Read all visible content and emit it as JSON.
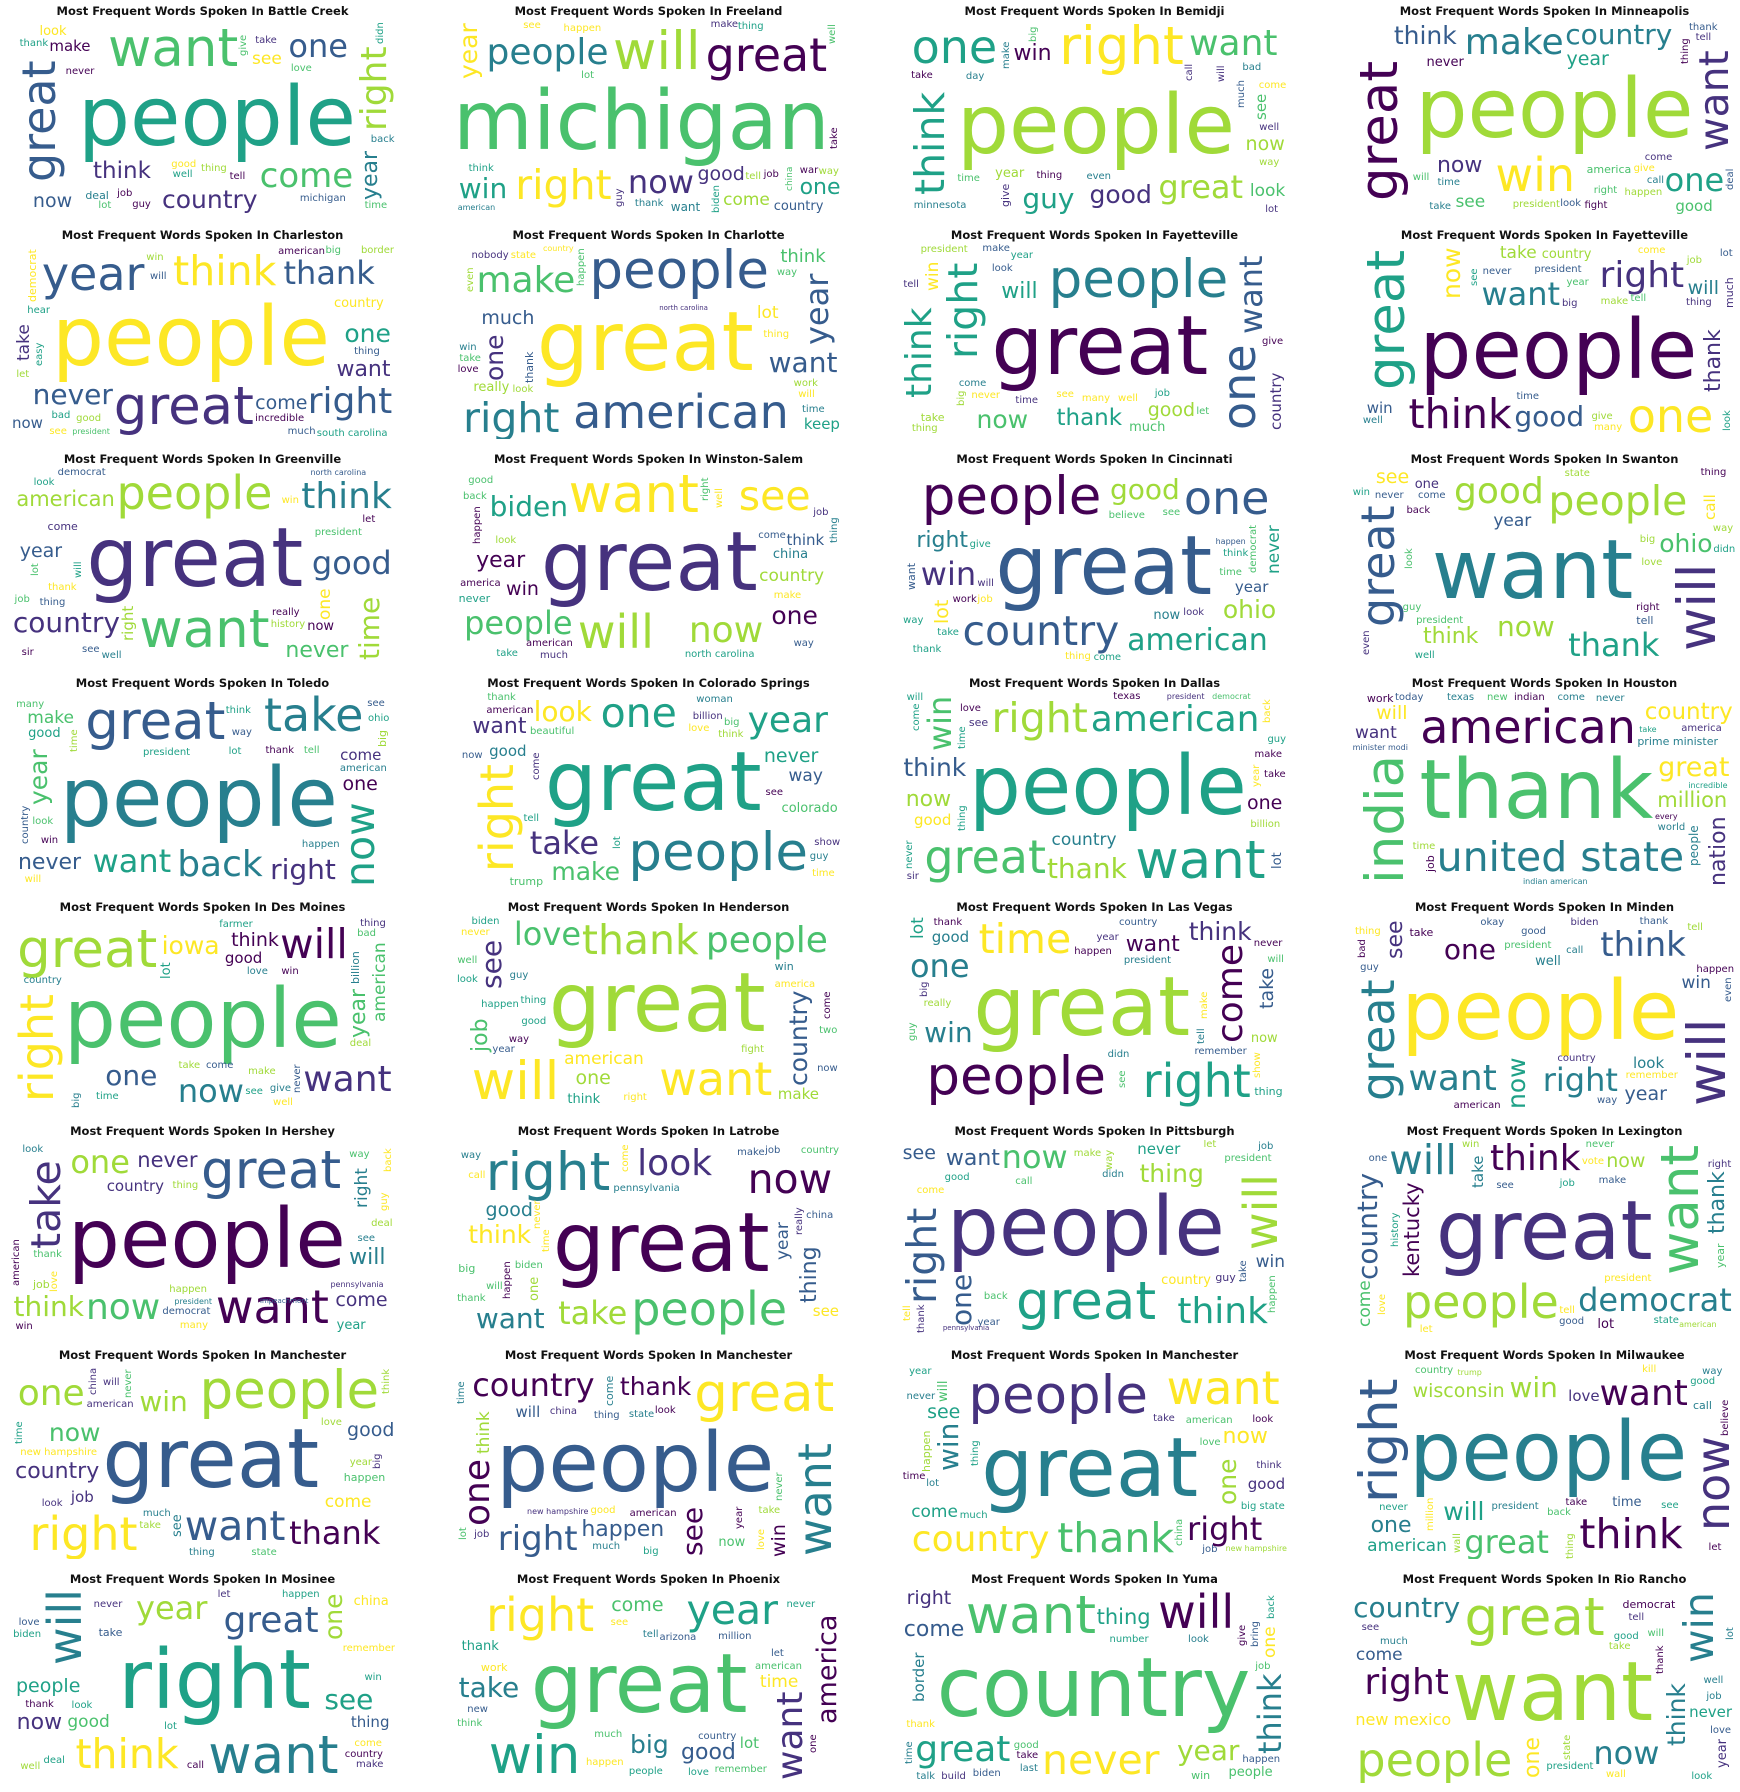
{
  "colors": [
    "#440154",
    "#46327e",
    "#365c8d",
    "#277f8e",
    "#1fa187",
    "#4ac16d",
    "#a0da39",
    "#fde725"
  ],
  "panels": [
    {
      "title": "Most Frequent Words Spoken In Battle Creek",
      "words": [
        "people",
        "want",
        "great",
        "come",
        "right",
        "one",
        "think",
        "country",
        "year",
        "now",
        "see",
        "make",
        "look",
        "deal",
        "job",
        "didn",
        "time",
        "good",
        "give",
        "lot",
        "thank",
        "guy",
        "never",
        "love",
        "thing",
        "michigan",
        "back",
        "take",
        "tell",
        "well"
      ]
    },
    {
      "title": "Most Frequent Words Spoken In Freeland",
      "words": [
        "michigan",
        "will",
        "great",
        "right",
        "people",
        "now",
        "win",
        "year",
        "one",
        "good",
        "come",
        "want",
        "country",
        "china",
        "well",
        "guy",
        "see",
        "tell",
        "think",
        "take",
        "make",
        "job",
        "lot",
        "happen",
        "biden",
        "way",
        "war",
        "american",
        "thank",
        "thing"
      ]
    },
    {
      "title": "Most Frequent Words Spoken In Bemidji",
      "words": [
        "people",
        "right",
        "one",
        "think",
        "want",
        "great",
        "guy",
        "good",
        "win",
        "now",
        "look",
        "see",
        "year",
        "give",
        "come",
        "bad",
        "will",
        "time",
        "much",
        "big",
        "minnesota",
        "thing",
        "day",
        "make",
        "lot",
        "even",
        "call",
        "way",
        "take",
        "well"
      ]
    },
    {
      "title": "Most Frequent Words Spoken In Minneapolis",
      "words": [
        "people",
        "great",
        "win",
        "want",
        "make",
        "one",
        "country",
        "think",
        "now",
        "year",
        "see",
        "good",
        "never",
        "america",
        "thing",
        "happen",
        "tell",
        "come",
        "look",
        "fight",
        "give",
        "time",
        "call",
        "will",
        "president",
        "take",
        "right",
        "deal",
        "thank"
      ]
    },
    {
      "title": "Most Frequent Words Spoken In Charleston",
      "words": [
        "people",
        "great",
        "year",
        "think",
        "right",
        "thank",
        "never",
        "one",
        "want",
        "come",
        "take",
        "now",
        "country",
        "democrat",
        "thing",
        "see",
        "good",
        "hear",
        "border",
        "much",
        "bad",
        "big",
        "will",
        "easy",
        "south carolina",
        "let",
        "american",
        "president",
        "incredible",
        "win"
      ]
    },
    {
      "title": "Most Frequent Words Spoken In Charlotte",
      "words": [
        "great",
        "people",
        "american",
        "right",
        "make",
        "year",
        "want",
        "one",
        "think",
        "much",
        "lot",
        "keep",
        "really",
        "thank",
        "time",
        "will",
        "state",
        "thing",
        "north carolina",
        "even",
        "look",
        "nobody",
        "take",
        "happen",
        "country",
        "work",
        "win",
        "love",
        "way"
      ]
    },
    {
      "title": "Most Frequent Words Spoken In Fayetteville",
      "words": [
        "great",
        "people",
        "one",
        "right",
        "think",
        "want",
        "thank",
        "now",
        "will",
        "good",
        "win",
        "country",
        "much",
        "take",
        "year",
        "big",
        "see",
        "make",
        "time",
        "never",
        "tell",
        "many",
        "well",
        "give",
        "come",
        "president",
        "job",
        "look",
        "let",
        "thing"
      ]
    },
    {
      "title": "Most Frequent Words Spoken In Fayetteville",
      "words": [
        "people",
        "great",
        "one",
        "think",
        "right",
        "want",
        "good",
        "now",
        "thank",
        "will",
        "take",
        "win",
        "country",
        "much",
        "year",
        "well",
        "big",
        "give",
        "time",
        "come",
        "make",
        "job",
        "see",
        "many",
        "never",
        "lot",
        "thing",
        "president",
        "look",
        "tell"
      ]
    },
    {
      "title": "Most Frequent Words Spoken In Greenville",
      "words": [
        "great",
        "want",
        "people",
        "country",
        "think",
        "good",
        "time",
        "american",
        "never",
        "year",
        "one",
        "right",
        "now",
        "come",
        "job",
        "thank",
        "see",
        "lot",
        "look",
        "sir",
        "really",
        "president",
        "let",
        "well",
        "democrat",
        "history",
        "win",
        "will",
        "thing",
        "north carolina"
      ]
    },
    {
      "title": "Most Frequent Words Spoken In Winston-Salem",
      "words": [
        "great",
        "want",
        "will",
        "see",
        "now",
        "people",
        "biden",
        "one",
        "year",
        "win",
        "country",
        "think",
        "china",
        "never",
        "come",
        "take",
        "make",
        "back",
        "american",
        "way",
        "job",
        "good",
        "look",
        "america",
        "happen",
        "well",
        "north carolina",
        "much",
        "right",
        "thing"
      ]
    },
    {
      "title": "Most Frequent Words Spoken In Cincinnati",
      "words": [
        "great",
        "people",
        "one",
        "country",
        "american",
        "win",
        "good",
        "ohio",
        "right",
        "lot",
        "never",
        "year",
        "now",
        "want",
        "thank",
        "see",
        "job",
        "time",
        "way",
        "believe",
        "look",
        "democrat",
        "take",
        "will",
        "happen",
        "give",
        "think",
        "come",
        "thing",
        "work"
      ]
    },
    {
      "title": "Most Frequent Words Spoken In Swanton",
      "words": [
        "want",
        "will",
        "great",
        "people",
        "good",
        "thank",
        "now",
        "ohio",
        "think",
        "see",
        "year",
        "call",
        "one",
        "tell",
        "never",
        "thing",
        "come",
        "even",
        "win",
        "didn",
        "president",
        "back",
        "big",
        "guy",
        "way",
        "right",
        "look",
        "well",
        "state",
        "love"
      ]
    },
    {
      "title": "Most Frequent Words Spoken In Toledo",
      "words": [
        "people",
        "great",
        "take",
        "now",
        "back",
        "want",
        "right",
        "year",
        "never",
        "one",
        "make",
        "come",
        "good",
        "big",
        "think",
        "lot",
        "time",
        "country",
        "thank",
        "win",
        "tell",
        "see",
        "happen",
        "look",
        "ohio",
        "many",
        "way",
        "will",
        "president",
        "american"
      ]
    },
    {
      "title": "Most Frequent Words Spoken In Colorado Springs",
      "words": [
        "great",
        "people",
        "right",
        "one",
        "year",
        "take",
        "look",
        "make",
        "want",
        "never",
        "way",
        "good",
        "colorado",
        "trump",
        "love",
        "guy",
        "woman",
        "come",
        "tell",
        "american",
        "see",
        "billion",
        "beautiful",
        "show",
        "now",
        "big",
        "time",
        "think",
        "thank",
        "lot"
      ]
    },
    {
      "title": "Most Frequent Words Spoken In Dallas",
      "words": [
        "people",
        "want",
        "great",
        "right",
        "american",
        "win",
        "thank",
        "think",
        "now",
        "one",
        "country",
        "good",
        "lot",
        "see",
        "billion",
        "will",
        "democrat",
        "love",
        "texas",
        "make",
        "year",
        "never",
        "take",
        "president",
        "come",
        "guy",
        "time",
        "thing",
        "back",
        "sir"
      ]
    },
    {
      "title": "Most Frequent Words Spoken In Houston",
      "words": [
        "thank",
        "india",
        "american",
        "united state",
        "prime minister",
        "great",
        "country",
        "million",
        "nation",
        "will",
        "want",
        "people",
        "work",
        "job",
        "indian",
        "america",
        "world",
        "minister modi",
        "today",
        "never",
        "every",
        "time",
        "come",
        "new",
        "incredible",
        "texas",
        "take",
        "indian american"
      ]
    },
    {
      "title": "Most Frequent Words Spoken In Des Moines",
      "words": [
        "people",
        "great",
        "right",
        "will",
        "want",
        "now",
        "one",
        "iowa",
        "year",
        "think",
        "american",
        "good",
        "lot",
        "billion",
        "farmer",
        "come",
        "make",
        "take",
        "give",
        "deal",
        "love",
        "big",
        "well",
        "time",
        "see",
        "never",
        "country",
        "win",
        "bad",
        "thing"
      ]
    },
    {
      "title": "Most Frequent Words Spoken In Henderson",
      "words": [
        "great",
        "will",
        "want",
        "thank",
        "people",
        "love",
        "see",
        "country",
        "job",
        "one",
        "american",
        "make",
        "think",
        "win",
        "guy",
        "fight",
        "right",
        "happen",
        "year",
        "good",
        "two",
        "way",
        "never",
        "look",
        "now",
        "america",
        "well",
        "biden",
        "come",
        "thing"
      ]
    },
    {
      "title": "Most Frequent Words Spoken In Las Vegas",
      "words": [
        "great",
        "people",
        "right",
        "time",
        "come",
        "one",
        "win",
        "think",
        "want",
        "take",
        "lot",
        "good",
        "now",
        "thing",
        "year",
        "thank",
        "see",
        "make",
        "big",
        "guy",
        "country",
        "really",
        "didn",
        "show",
        "will",
        "happen",
        "never",
        "president",
        "tell",
        "remember"
      ]
    },
    {
      "title": "Most Frequent Words Spoken In Minden",
      "words": [
        "people",
        "will",
        "great",
        "think",
        "want",
        "right",
        "one",
        "now",
        "see",
        "year",
        "win",
        "look",
        "well",
        "take",
        "good",
        "thank",
        "call",
        "biden",
        "bad",
        "country",
        "guy",
        "way",
        "happen",
        "thing",
        "tell",
        "president",
        "okay",
        "american",
        "remember",
        "even"
      ]
    },
    {
      "title": "Most Frequent Words Spoken In Hershey",
      "words": [
        "people",
        "great",
        "want",
        "take",
        "now",
        "one",
        "think",
        "never",
        "will",
        "come",
        "right",
        "country",
        "year",
        "job",
        "see",
        "win",
        "way",
        "democrat",
        "look",
        "american",
        "happen",
        "love",
        "thing",
        "deal",
        "many",
        "guy",
        "back",
        "thank",
        "president",
        "pennsylvania",
        "impeachment"
      ]
    },
    {
      "title": "Most Frequent Words Spoken In Latrobe",
      "words": [
        "great",
        "right",
        "people",
        "now",
        "look",
        "take",
        "want",
        "think",
        "thing",
        "good",
        "year",
        "see",
        "one",
        "big",
        "will",
        "come",
        "happen",
        "never",
        "really",
        "time",
        "china",
        "pennsylvania",
        "call",
        "country",
        "job",
        "way",
        "make",
        "thank",
        "biden"
      ]
    },
    {
      "title": "Most Frequent Words Spoken In Pittsburgh",
      "words": [
        "people",
        "great",
        "will",
        "right",
        "think",
        "now",
        "one",
        "thing",
        "want",
        "see",
        "win",
        "never",
        "country",
        "guy",
        "thank",
        "happen",
        "way",
        "let",
        "tell",
        "call",
        "didn",
        "make",
        "back",
        "job",
        "come",
        "year",
        "good",
        "president",
        "pennsylvania",
        "take"
      ]
    },
    {
      "title": "Most Frequent Words Spoken In Lexington",
      "words": [
        "great",
        "want",
        "people",
        "will",
        "think",
        "democrat",
        "country",
        "kentucky",
        "thank",
        "now",
        "come",
        "take",
        "lot",
        "year",
        "vote",
        "see",
        "good",
        "one",
        "job",
        "love",
        "state",
        "make",
        "right",
        "american",
        "never",
        "win",
        "let",
        "president",
        "history",
        "tell"
      ]
    },
    {
      "title": "Most Frequent Words Spoken In Manchester",
      "words": [
        "great",
        "people",
        "right",
        "want",
        "one",
        "thank",
        "win",
        "now",
        "country",
        "good",
        "come",
        "job",
        "see",
        "happen",
        "will",
        "think",
        "new hampshire",
        "time",
        "year",
        "american",
        "look",
        "much",
        "thing",
        "state",
        "love",
        "never",
        "china",
        "take",
        "big"
      ]
    },
    {
      "title": "Most Frequent Words Spoken In Manchester",
      "words": [
        "people",
        "great",
        "want",
        "right",
        "one",
        "country",
        "see",
        "thank",
        "happen",
        "win",
        "think",
        "will",
        "now",
        "come",
        "job",
        "good",
        "year",
        "look",
        "china",
        "big",
        "time",
        "love",
        "state",
        "lot",
        "much",
        "american",
        "take",
        "never",
        "thing",
        "new hampshire"
      ]
    },
    {
      "title": "Most Frequent Words Spoken In Manchester",
      "words": [
        "great",
        "people",
        "want",
        "thank",
        "country",
        "right",
        "win",
        "one",
        "now",
        "see",
        "come",
        "good",
        "will",
        "happen",
        "job",
        "much",
        "time",
        "lot",
        "china",
        "big state",
        "american",
        "take",
        "think",
        "new hampshire",
        "love",
        "thing",
        "never",
        "look",
        "year"
      ]
    },
    {
      "title": "Most Frequent Words Spoken In Milwaukee",
      "words": [
        "people",
        "right",
        "now",
        "think",
        "want",
        "great",
        "win",
        "will",
        "one",
        "wisconsin",
        "american",
        "love",
        "time",
        "call",
        "back",
        "thing",
        "good",
        "way",
        "never",
        "million",
        "believe",
        "president",
        "country",
        "wall",
        "take",
        "let",
        "kill",
        "trump",
        "see"
      ]
    },
    {
      "title": "Most Frequent Words Spoken In Mosinee",
      "words": [
        "right",
        "want",
        "will",
        "think",
        "great",
        "year",
        "see",
        "one",
        "now",
        "people",
        "good",
        "thing",
        "china",
        "take",
        "make",
        "let",
        "thank",
        "biden",
        "never",
        "look",
        "love",
        "well",
        "win",
        "happen",
        "deal",
        "remember",
        "come",
        "lot",
        "call",
        "country"
      ]
    },
    {
      "title": "Most Frequent Words Spoken In Phoenix",
      "words": [
        "great",
        "win",
        "right",
        "year",
        "want",
        "america",
        "take",
        "big",
        "good",
        "come",
        "time",
        "lot",
        "thank",
        "work",
        "think",
        "one",
        "people",
        "much",
        "love",
        "let",
        "million",
        "see",
        "new",
        "tell",
        "remember",
        "happen",
        "arizona",
        "american",
        "country",
        "never"
      ]
    },
    {
      "title": "Most Frequent Words Spoken In Yuma",
      "words": [
        "country",
        "want",
        "will",
        "never",
        "great",
        "think",
        "year",
        "thing",
        "come",
        "right",
        "one",
        "border",
        "people",
        "win",
        "talk",
        "back",
        "thank",
        "give",
        "number",
        "time",
        "good",
        "last",
        "take",
        "bring",
        "job",
        "happen",
        "build",
        "biden",
        "look"
      ]
    },
    {
      "title": "Most Frequent Words Spoken In Rio Rancho",
      "words": [
        "want",
        "great",
        "people",
        "win",
        "right",
        "now",
        "country",
        "think",
        "one",
        "new mexico",
        "come",
        "never",
        "year",
        "democrat",
        "tell",
        "take",
        "look",
        "lot",
        "state",
        "job",
        "wall",
        "well",
        "president",
        "see",
        "thank",
        "love",
        "much",
        "will",
        "good"
      ]
    }
  ]
}
